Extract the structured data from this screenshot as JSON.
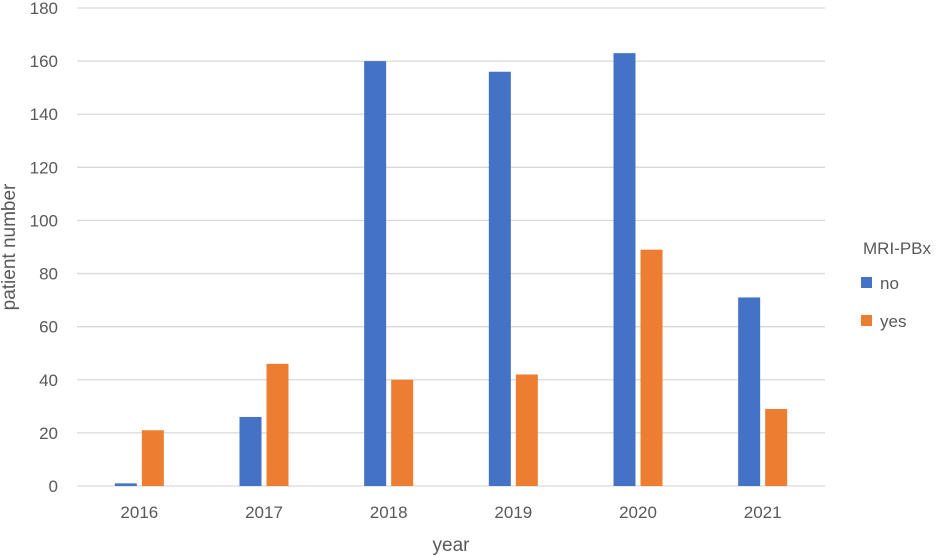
{
  "chart_data": {
    "type": "bar",
    "title": "",
    "xlabel": "year",
    "ylabel": "patient number",
    "categories": [
      "2016",
      "2017",
      "2018",
      "2019",
      "2020",
      "2021"
    ],
    "series": [
      {
        "name": "no",
        "color": "#4472C4",
        "values": [
          1,
          26,
          160,
          156,
          163,
          71
        ]
      },
      {
        "name": "yes",
        "color": "#ED7D31",
        "values": [
          21,
          46,
          40,
          42,
          89,
          29
        ]
      }
    ],
    "ylim": [
      0,
      180
    ],
    "yticks": [
      "0",
      "20",
      "40",
      "60",
      "80",
      "100",
      "120",
      "140",
      "160",
      "180"
    ],
    "grid": true,
    "legend": {
      "title": "MRI-PBx",
      "placement": "right"
    },
    "colors": {
      "grid": "#D9D9D9",
      "text": "#595959"
    }
  }
}
